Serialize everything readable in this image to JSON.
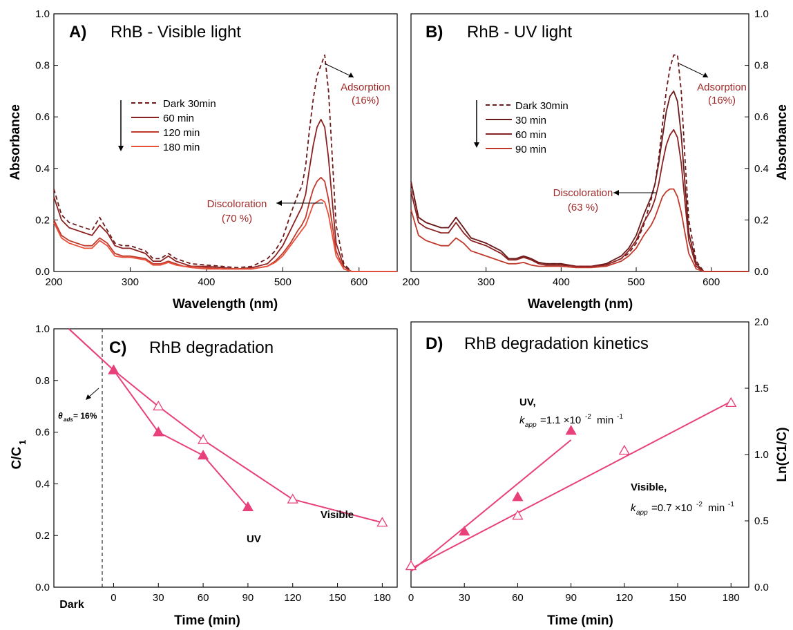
{
  "panels": {
    "a": {
      "title": "A)",
      "subtitle": "RhB - Visible light",
      "xlabel": "Wavelength (nm)",
      "ylabel": "Absorbance",
      "annotation_adsorption": [
        "Adsorption",
        "(16%)"
      ],
      "annotation_discoloration": [
        "Discoloration",
        "(70 %)"
      ],
      "legend": [
        "Dark 30min",
        "60 min",
        "120 min",
        "180 min"
      ]
    },
    "b": {
      "title": "B)",
      "subtitle": "RhB - UV light",
      "xlabel": "Wavelength (nm)",
      "ylabel": "Absorbance",
      "annotation_adsorption": [
        "Adsorption",
        "(16%)"
      ],
      "annotation_discoloration": [
        "Discoloration",
        "(63 %)"
      ],
      "legend": [
        "Dark 30min",
        "30 min",
        "60 min",
        "90 min"
      ]
    },
    "c": {
      "title": "C)",
      "subtitle": "RhB degradation",
      "xlabel": "Time (min)",
      "ylabel_main": "C/C",
      "ylabel_sub": "1",
      "dark_tick": "Dark",
      "theta_label": "θ",
      "theta_sub": "ads",
      "theta_value": "= 16%",
      "label_uv": "UV",
      "label_visible": "Visible"
    },
    "d": {
      "title": "D)",
      "subtitle": "RhB degradation kinetics",
      "xlabel": "Time (min)",
      "ylabel": "Ln(C1/C)",
      "uv_label": "UV,",
      "uv_k": "=1.1 ×10",
      "uv_exp": "-2",
      "uv_unit": "min",
      "uv_unit_exp": "-1",
      "vis_label": "Visible,",
      "vis_k": "=0.7 ×10",
      "vis_exp": "-2",
      "vis_unit": "min",
      "vis_unit_exp": "-1",
      "k_symbol": "k",
      "k_sub": "app"
    }
  },
  "colors": {
    "dark": "#6b1a1a",
    "c1": "#8b2020",
    "c2": "#c0392b",
    "c3": "#e8503a",
    "magenta": "#e8407a",
    "annot": "#a02828"
  },
  "chart_data": [
    {
      "panel": "A",
      "type": "line",
      "title": "RhB - Visible light",
      "xlabel": "Wavelength (nm)",
      "ylabel": "Absorbance",
      "xlim": [
        200,
        650
      ],
      "ylim": [
        0,
        1.0
      ],
      "xticks": [
        200,
        300,
        400,
        500,
        600
      ],
      "yticks": [
        0.0,
        0.2,
        0.4,
        0.6,
        0.8,
        1.0
      ],
      "x": [
        200,
        210,
        220,
        230,
        240,
        250,
        260,
        270,
        280,
        290,
        300,
        320,
        330,
        340,
        350,
        360,
        370,
        380,
        400,
        420,
        440,
        460,
        480,
        490,
        500,
        510,
        520,
        525,
        530,
        535,
        540,
        545,
        550,
        555,
        560,
        565,
        570,
        580,
        590,
        600,
        620,
        650
      ],
      "series": [
        {
          "name": "Dark 30min",
          "values": [
            0.32,
            0.22,
            0.19,
            0.18,
            0.17,
            0.16,
            0.21,
            0.16,
            0.11,
            0.1,
            0.1,
            0.08,
            0.05,
            0.05,
            0.07,
            0.05,
            0.04,
            0.03,
            0.025,
            0.02,
            0.015,
            0.02,
            0.05,
            0.08,
            0.13,
            0.22,
            0.3,
            0.33,
            0.41,
            0.55,
            0.67,
            0.76,
            0.8,
            0.84,
            0.7,
            0.44,
            0.18,
            0.03,
            0.0,
            0.0,
            0.0,
            0.0
          ]
        },
        {
          "name": "60 min",
          "values": [
            0.29,
            0.2,
            0.17,
            0.16,
            0.15,
            0.14,
            0.18,
            0.15,
            0.1,
            0.09,
            0.09,
            0.07,
            0.04,
            0.04,
            0.06,
            0.04,
            0.03,
            0.02,
            0.02,
            0.015,
            0.01,
            0.015,
            0.03,
            0.06,
            0.1,
            0.16,
            0.22,
            0.25,
            0.3,
            0.4,
            0.49,
            0.56,
            0.59,
            0.56,
            0.44,
            0.27,
            0.11,
            0.02,
            0.0,
            0.0,
            0.0,
            0.0
          ]
        },
        {
          "name": "120 min",
          "values": [
            0.2,
            0.14,
            0.12,
            0.11,
            0.1,
            0.1,
            0.13,
            0.11,
            0.07,
            0.06,
            0.06,
            0.05,
            0.03,
            0.03,
            0.04,
            0.03,
            0.02,
            0.02,
            0.015,
            0.01,
            0.01,
            0.01,
            0.02,
            0.04,
            0.07,
            0.11,
            0.16,
            0.18,
            0.21,
            0.27,
            0.32,
            0.35,
            0.365,
            0.35,
            0.28,
            0.18,
            0.08,
            0.01,
            0.0,
            0.0,
            0.0,
            0.0
          ]
        },
        {
          "name": "180 min",
          "values": [
            0.19,
            0.13,
            0.11,
            0.1,
            0.09,
            0.09,
            0.12,
            0.1,
            0.06,
            0.055,
            0.055,
            0.045,
            0.025,
            0.025,
            0.035,
            0.025,
            0.02,
            0.015,
            0.01,
            0.01,
            0.01,
            0.01,
            0.02,
            0.035,
            0.06,
            0.1,
            0.14,
            0.16,
            0.18,
            0.22,
            0.26,
            0.27,
            0.28,
            0.27,
            0.22,
            0.14,
            0.06,
            0.01,
            0.0,
            0.0,
            0.0,
            0.0
          ]
        }
      ]
    },
    {
      "panel": "B",
      "type": "line",
      "title": "RhB - UV light",
      "xlabel": "Wavelength (nm)",
      "ylabel": "Absorbance",
      "xlim": [
        200,
        650
      ],
      "ylim": [
        0,
        1.0
      ],
      "xticks": [
        200,
        300,
        400,
        500,
        600
      ],
      "yticks": [
        0.0,
        0.2,
        0.4,
        0.6,
        0.8,
        1.0
      ],
      "x": [
        200,
        210,
        220,
        230,
        240,
        250,
        260,
        270,
        280,
        290,
        300,
        320,
        330,
        340,
        350,
        360,
        370,
        380,
        400,
        420,
        440,
        460,
        480,
        490,
        500,
        510,
        520,
        525,
        530,
        535,
        540,
        545,
        550,
        555,
        560,
        565,
        570,
        580,
        590,
        600,
        620,
        650
      ],
      "series": [
        {
          "name": "Dark 30min",
          "values": [
            0.34,
            0.21,
            0.19,
            0.18,
            0.17,
            0.17,
            0.21,
            0.17,
            0.13,
            0.12,
            0.11,
            0.08,
            0.05,
            0.05,
            0.06,
            0.05,
            0.035,
            0.03,
            0.03,
            0.02,
            0.02,
            0.025,
            0.05,
            0.07,
            0.11,
            0.18,
            0.28,
            0.34,
            0.44,
            0.57,
            0.7,
            0.79,
            0.84,
            0.84,
            0.7,
            0.44,
            0.2,
            0.04,
            0.0,
            0.0,
            0.0,
            0.0
          ]
        },
        {
          "name": "30 min",
          "values": [
            0.35,
            0.21,
            0.19,
            0.18,
            0.17,
            0.17,
            0.21,
            0.17,
            0.13,
            0.12,
            0.11,
            0.08,
            0.05,
            0.05,
            0.06,
            0.05,
            0.035,
            0.03,
            0.03,
            0.02,
            0.02,
            0.03,
            0.06,
            0.09,
            0.14,
            0.22,
            0.29,
            0.34,
            0.42,
            0.52,
            0.62,
            0.68,
            0.7,
            0.66,
            0.53,
            0.34,
            0.15,
            0.03,
            0.0,
            0.0,
            0.0,
            0.0
          ]
        },
        {
          "name": "60 min",
          "values": [
            0.31,
            0.19,
            0.17,
            0.16,
            0.15,
            0.15,
            0.19,
            0.15,
            0.12,
            0.11,
            0.1,
            0.07,
            0.045,
            0.045,
            0.055,
            0.045,
            0.03,
            0.025,
            0.025,
            0.02,
            0.02,
            0.025,
            0.05,
            0.08,
            0.12,
            0.19,
            0.24,
            0.28,
            0.34,
            0.42,
            0.49,
            0.53,
            0.55,
            0.52,
            0.42,
            0.27,
            0.12,
            0.02,
            0.0,
            0.0,
            0.0,
            0.0
          ]
        },
        {
          "name": "90 min",
          "values": [
            0.24,
            0.14,
            0.12,
            0.11,
            0.1,
            0.1,
            0.13,
            0.11,
            0.08,
            0.07,
            0.06,
            0.04,
            0.03,
            0.03,
            0.035,
            0.025,
            0.02,
            0.02,
            0.02,
            0.015,
            0.015,
            0.02,
            0.04,
            0.06,
            0.09,
            0.14,
            0.18,
            0.21,
            0.25,
            0.29,
            0.31,
            0.32,
            0.32,
            0.29,
            0.23,
            0.15,
            0.07,
            0.01,
            0.0,
            0.0,
            0.0,
            0.0
          ]
        }
      ]
    },
    {
      "panel": "C",
      "type": "line",
      "title": "RhB degradation",
      "xlabel": "Time (min)",
      "ylabel": "C/C1",
      "xlim": [
        -40,
        190
      ],
      "ylim": [
        0,
        1.0
      ],
      "xticks": [
        0,
        30,
        60,
        90,
        120,
        150,
        180
      ],
      "yticks": [
        0.0,
        0.2,
        0.4,
        0.6,
        0.8,
        1.0
      ],
      "series": [
        {
          "name": "Visible",
          "x": [
            -30,
            0,
            30,
            60,
            120,
            180
          ],
          "values": [
            1.0,
            0.84,
            0.7,
            0.57,
            0.34,
            0.25
          ],
          "marker": "open-triangle"
        },
        {
          "name": "UV",
          "x": [
            -30,
            0,
            30,
            60,
            90
          ],
          "values": [
            1.0,
            0.84,
            0.6,
            0.51,
            0.31
          ],
          "marker": "filled-triangle"
        }
      ]
    },
    {
      "panel": "D",
      "type": "scatter",
      "title": "RhB degradation kinetics",
      "xlabel": "Time (min)",
      "ylabel": "Ln(C1/C)",
      "xlim": [
        0,
        190
      ],
      "ylim": [
        0,
        2.0
      ],
      "xticks": [
        0,
        30,
        60,
        90,
        120,
        150,
        180
      ],
      "yticks": [
        0.0,
        0.5,
        1.0,
        1.5,
        2.0
      ],
      "series": [
        {
          "name": "UV",
          "x": [
            0,
            30,
            60,
            90
          ],
          "values": [
            0.16,
            0.42,
            0.68,
            1.18
          ],
          "marker": "filled-triangle",
          "fit": [
            [
              0,
              0.12
            ],
            [
              90,
              1.11
            ]
          ]
        },
        {
          "name": "Visible",
          "x": [
            0,
            60,
            120,
            180
          ],
          "values": [
            0.16,
            0.54,
            1.03,
            1.39
          ],
          "marker": "open-triangle",
          "fit": [
            [
              0,
              0.14
            ],
            [
              180,
              1.4
            ]
          ]
        }
      ]
    }
  ]
}
